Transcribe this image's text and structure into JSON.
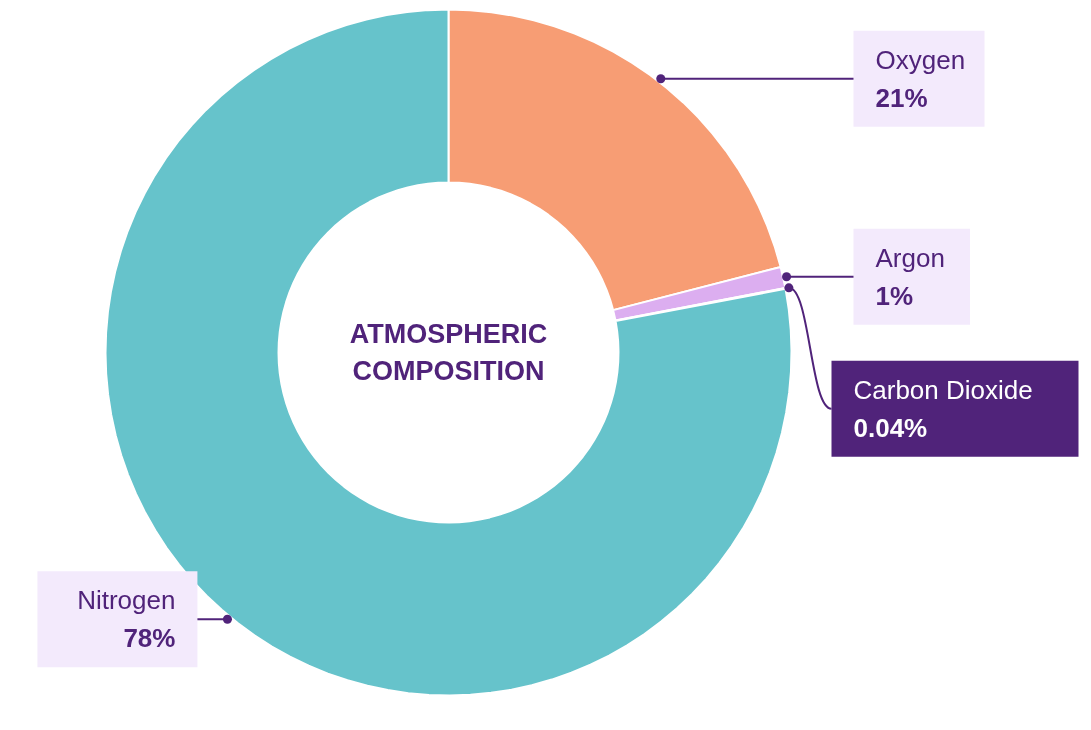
{
  "chart_data": {
    "type": "donut",
    "title": "ATMOSPHERIC COMPOSITION",
    "categories": [
      "Oxygen",
      "Argon",
      "Carbon Dioxide",
      "Nitrogen"
    ],
    "values": [
      21,
      1,
      0.04,
      78
    ],
    "colors": [
      "#f79d74",
      "#dcaef0",
      "#f7cf6e",
      "#66c3cb"
    ],
    "value_labels": [
      "21%",
      "1%",
      "0.04%",
      "78%"
    ]
  }
}
